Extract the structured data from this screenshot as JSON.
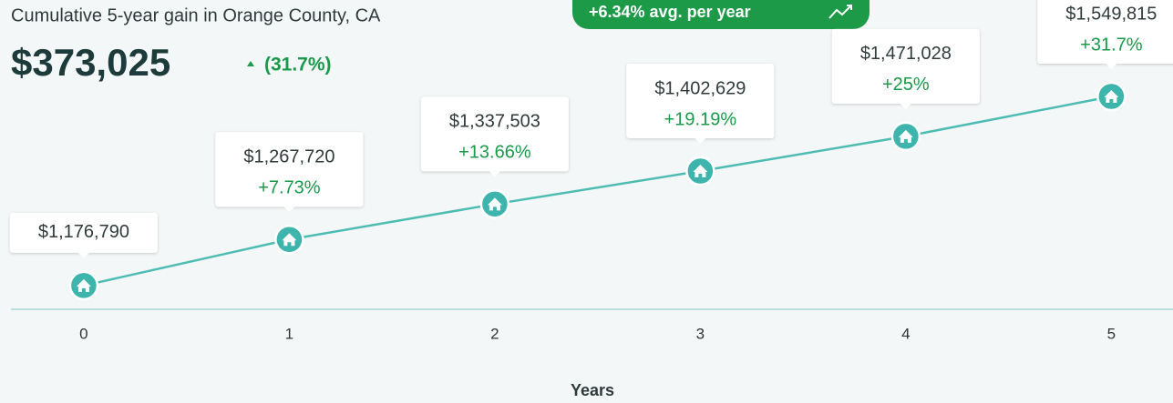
{
  "chart_data": {
    "type": "line",
    "title": "Cumulative 5-year gain in Orange County, CA",
    "gain": "$373,025",
    "gain_pct": "(31.7%)",
    "badge": "+6.34% avg. per year",
    "x": [
      0,
      1,
      2,
      3,
      4,
      5
    ],
    "values": [
      1176790,
      1267720,
      1337503,
      1402629,
      1471028,
      1549815
    ],
    "value_labels": [
      "$1,176,790",
      "$1,267,720",
      "$1,337,503",
      "$1,402,629",
      "$1,471,028",
      "$1,549,815"
    ],
    "change_labels": [
      null,
      "+7.73%",
      "+13.66%",
      "+19.19%",
      "+25%",
      "+31.7%"
    ],
    "color": "#4dbdb3",
    "xlim": [
      -0.35,
      5.3
    ],
    "xticks": [
      0,
      1,
      2,
      3,
      4,
      5
    ],
    "ylim": [
      1130000,
      1600000
    ],
    "xlabel": "Years"
  }
}
